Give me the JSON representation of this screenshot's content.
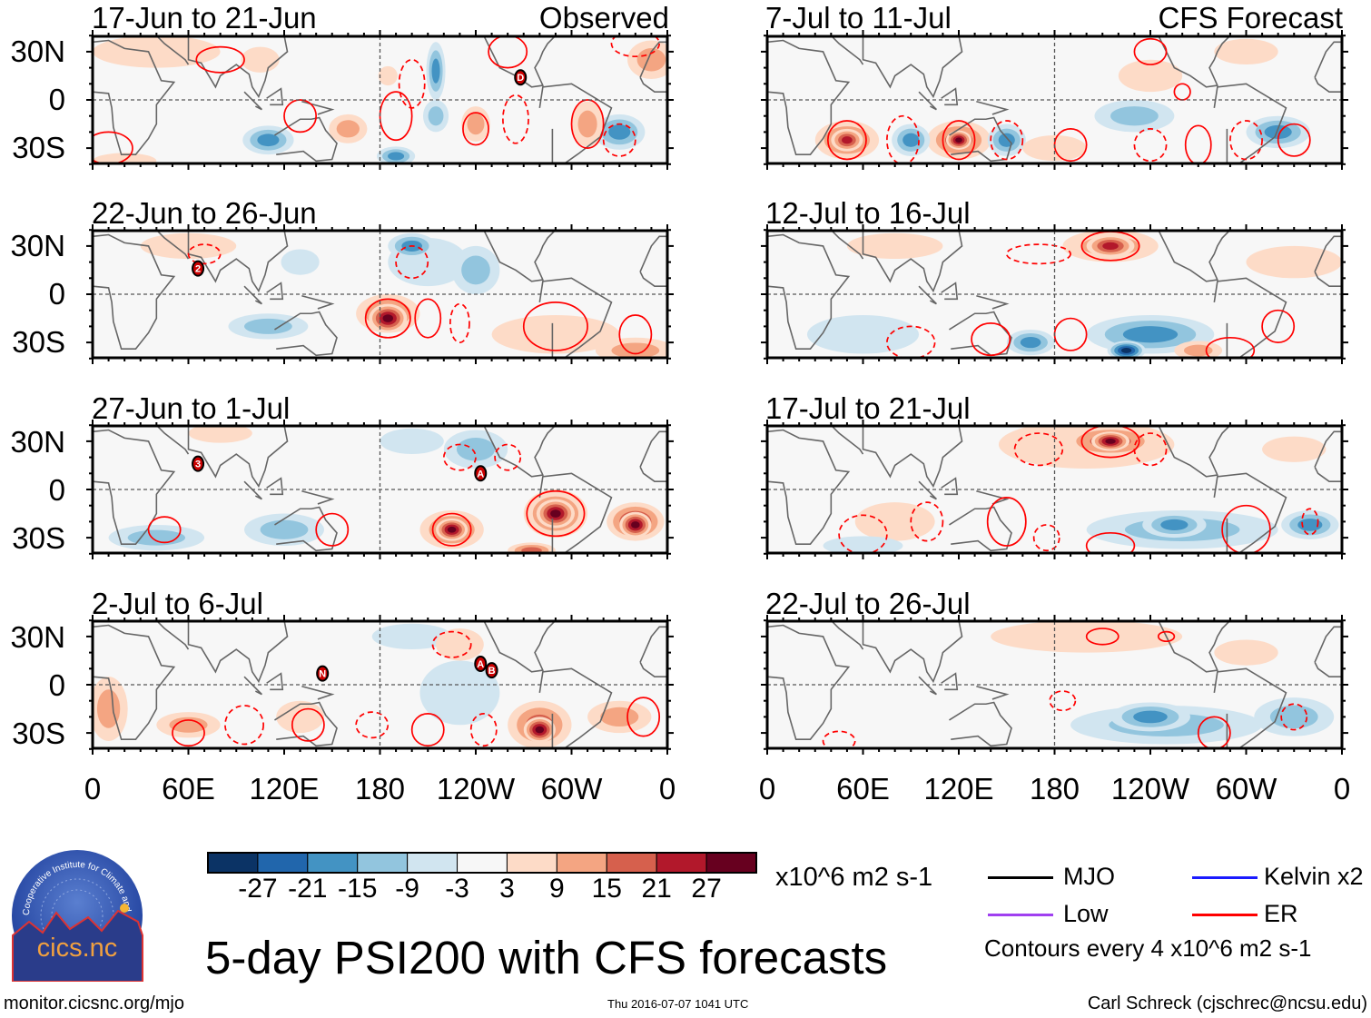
{
  "title": "5-day PSI200 with CFS forecasts",
  "left_column_label": "Observed",
  "right_column_label": "CFS Forecast",
  "panels": [
    {
      "id": "p1",
      "title": "17-Jun to 21-Jun",
      "type": "observed",
      "storms": [
        {
          "label": "D",
          "lon": 268,
          "lat": 14
        }
      ]
    },
    {
      "id": "p2",
      "title": "22-Jun to 26-Jun",
      "type": "observed",
      "storms": [
        {
          "label": "2",
          "lon": 66,
          "lat": 16
        }
      ]
    },
    {
      "id": "p3",
      "title": "27-Jun to 1-Jul",
      "type": "observed",
      "storms": [
        {
          "label": "3",
          "lon": 66,
          "lat": 16
        },
        {
          "label": "A",
          "lon": 243,
          "lat": 10
        }
      ]
    },
    {
      "id": "p4",
      "title": "2-Jul to 6-Jul",
      "type": "observed",
      "storms": [
        {
          "label": "N",
          "lon": 144,
          "lat": 7
        },
        {
          "label": "A",
          "lon": 243,
          "lat": 13
        },
        {
          "label": "B",
          "lon": 250,
          "lat": 9
        }
      ]
    },
    {
      "id": "p5",
      "title": "7-Jul to 11-Jul",
      "type": "forecast",
      "storms": []
    },
    {
      "id": "p6",
      "title": "12-Jul to 16-Jul",
      "type": "forecast",
      "storms": []
    },
    {
      "id": "p7",
      "title": "17-Jul to 21-Jul",
      "type": "forecast",
      "storms": []
    },
    {
      "id": "p8",
      "title": "22-Jul to 26-Jul",
      "type": "forecast",
      "storms": []
    }
  ],
  "chart_data": {
    "type": "heatmap",
    "title": "5-day PSI200 with CFS forecasts",
    "variable": "200 hPa streamfunction anomaly",
    "units": "x10^6 m2 s-1",
    "lon_ticks": [
      "0",
      "60E",
      "120E",
      "180",
      "120W",
      "60W",
      "0"
    ],
    "lat_ticks": [
      "30N",
      "0",
      "30S"
    ],
    "lon_range": [
      0,
      360
    ],
    "lat_range": [
      -40,
      40
    ],
    "colorbar": {
      "levels": [
        "-27",
        "-21",
        "-15",
        "-9",
        "-3",
        "3",
        "9",
        "15",
        "21",
        "27"
      ],
      "colors": [
        "#0b3365",
        "#2166ac",
        "#4393c3",
        "#92c5de",
        "#d1e5f0",
        "#f7f7f7",
        "#fddbc7",
        "#f4a582",
        "#d6604d",
        "#b2182b",
        "#67001f"
      ]
    },
    "contour_interval_note": "Contours every 4 x10^6 m2 s-1"
  },
  "legend": {
    "items": [
      {
        "label": "MJO",
        "color": "#000000"
      },
      {
        "label": "Kelvin x2",
        "color": "#1a1aff"
      },
      {
        "label": "Low",
        "color": "#a040f0"
      },
      {
        "label": "ER",
        "color": "#ff0000"
      }
    ],
    "contours_note": "Contours every 4 x10^6 m2 s-1"
  },
  "footer": {
    "url": "monitor.cicsnc.org/mjo",
    "timestamp": "Thu 2016-07-07 1041 UTC",
    "author": "Carl Schreck (cjschrec@ncsu.edu)"
  },
  "logo": {
    "text": "cics.nc",
    "ring_text": "Cooperative Institute for Climate and Satellites"
  }
}
